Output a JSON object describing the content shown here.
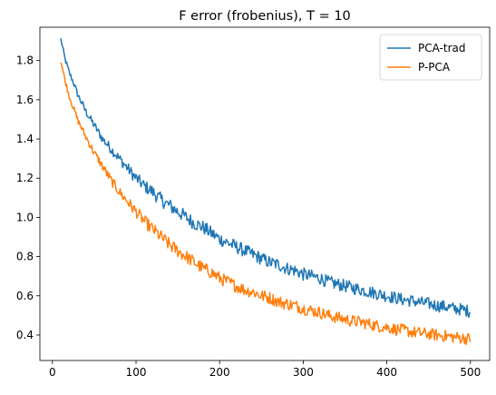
{
  "chart_data": {
    "type": "line",
    "title": "F error (frobenius), T = 10",
    "xlabel": "",
    "ylabel": "",
    "xlim": [
      -15,
      523
    ],
    "ylim": [
      0.27,
      1.97
    ],
    "xticks": [
      0,
      100,
      200,
      300,
      400,
      500
    ],
    "yticks": [
      0.4,
      0.6,
      0.8,
      1.0,
      1.2,
      1.4,
      1.6,
      1.8
    ],
    "xtick_labels": [
      "0",
      "100",
      "200",
      "300",
      "400",
      "500"
    ],
    "ytick_labels": [
      "0.4",
      "0.6",
      "0.8",
      "1.0",
      "1.2",
      "1.4",
      "1.6",
      "1.8"
    ],
    "grid": false,
    "legend_position": "top-right",
    "series": [
      {
        "name": "PCA-trad",
        "color": "#1f77b4",
        "x": [
          10,
          15,
          20,
          25,
          30,
          40,
          50,
          60,
          70,
          80,
          90,
          100,
          110,
          120,
          130,
          140,
          150,
          160,
          170,
          180,
          190,
          200,
          210,
          220,
          230,
          240,
          250,
          260,
          270,
          280,
          290,
          300,
          310,
          320,
          330,
          340,
          350,
          360,
          370,
          380,
          390,
          400,
          410,
          420,
          430,
          440,
          450,
          460,
          470,
          480,
          490,
          500
        ],
        "values": [
          1.91,
          1.81,
          1.74,
          1.69,
          1.63,
          1.54,
          1.47,
          1.4,
          1.35,
          1.3,
          1.25,
          1.2,
          1.16,
          1.13,
          1.09,
          1.06,
          1.03,
          1.0,
          0.97,
          0.95,
          0.92,
          0.89,
          0.87,
          0.85,
          0.83,
          0.81,
          0.79,
          0.77,
          0.76,
          0.74,
          0.73,
          0.71,
          0.7,
          0.69,
          0.67,
          0.66,
          0.65,
          0.64,
          0.63,
          0.62,
          0.61,
          0.6,
          0.59,
          0.58,
          0.575,
          0.565,
          0.56,
          0.55,
          0.545,
          0.535,
          0.53,
          0.52
        ]
      },
      {
        "name": "P-PCA",
        "color": "#ff7f0e",
        "x": [
          10,
          15,
          20,
          25,
          30,
          40,
          50,
          60,
          70,
          80,
          90,
          100,
          110,
          120,
          130,
          140,
          150,
          160,
          170,
          180,
          190,
          200,
          210,
          220,
          230,
          240,
          250,
          260,
          270,
          280,
          290,
          300,
          310,
          320,
          330,
          340,
          350,
          360,
          370,
          380,
          390,
          400,
          410,
          420,
          430,
          440,
          450,
          460,
          470,
          480,
          490,
          500
        ],
        "values": [
          1.8,
          1.7,
          1.62,
          1.56,
          1.5,
          1.41,
          1.33,
          1.26,
          1.19,
          1.13,
          1.08,
          1.03,
          0.98,
          0.94,
          0.9,
          0.86,
          0.83,
          0.8,
          0.77,
          0.74,
          0.72,
          0.69,
          0.67,
          0.65,
          0.63,
          0.62,
          0.6,
          0.59,
          0.57,
          0.56,
          0.55,
          0.535,
          0.525,
          0.515,
          0.5,
          0.49,
          0.48,
          0.47,
          0.465,
          0.455,
          0.445,
          0.44,
          0.43,
          0.425,
          0.415,
          0.41,
          0.405,
          0.4,
          0.395,
          0.39,
          0.385,
          0.38
        ]
      }
    ]
  }
}
